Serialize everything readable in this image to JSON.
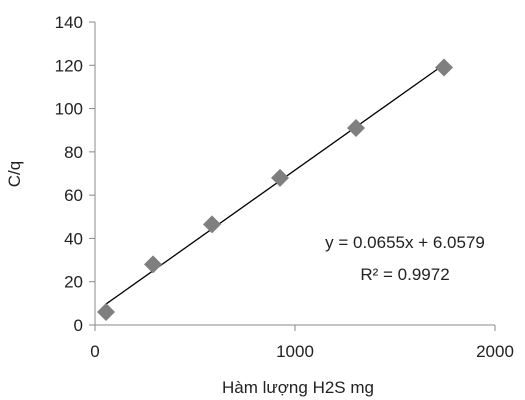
{
  "chart_data": {
    "type": "scatter",
    "xlabel": "Hàm lượng H2S mg",
    "ylabel": "C/q",
    "xlim": [
      0,
      2000
    ],
    "ylim": [
      0,
      140
    ],
    "xticks": [
      0,
      1000,
      2000
    ],
    "yticks": [
      0,
      20,
      40,
      60,
      80,
      100,
      120,
      140
    ],
    "grid": false,
    "series": [
      {
        "marker": "diamond",
        "color": "#7f7f7f",
        "points": [
          {
            "x": 55,
            "y": 6
          },
          {
            "x": 290,
            "y": 28
          },
          {
            "x": 585,
            "y": 46.5
          },
          {
            "x": 925,
            "y": 68
          },
          {
            "x": 1305,
            "y": 91
          },
          {
            "x": 1745,
            "y": 119
          }
        ]
      }
    ],
    "trendline": {
      "type": "linear",
      "slope": 0.0655,
      "intercept": 6.0579,
      "x_range": [
        55,
        1745
      ],
      "color": "#000000"
    },
    "annotations": {
      "equation": "y = 0.0655x + 6.0579",
      "r_squared": "R² = 0.9972"
    }
  }
}
